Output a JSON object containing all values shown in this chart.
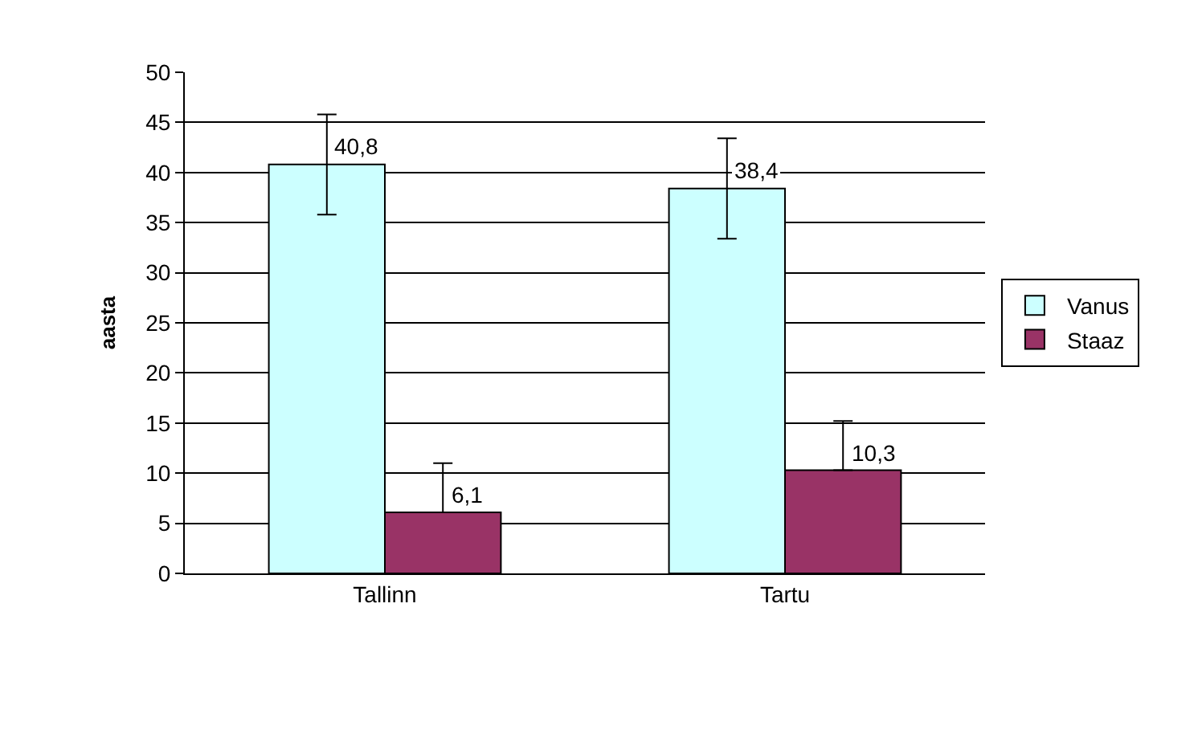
{
  "chart_data": {
    "type": "bar",
    "ylabel": "aasta",
    "categories": [
      "Tallinn",
      "Tartu"
    ],
    "series": [
      {
        "name": "Vanus",
        "color": "#ccffff",
        "values": [
          40.8,
          38.4
        ],
        "errors": [
          5,
          5
        ],
        "value_labels": [
          "40,8",
          "38,4"
        ]
      },
      {
        "name": "Staaz",
        "color": "#993366",
        "values": [
          6.1,
          10.3
        ],
        "errors": [
          [
            6.1,
            11.0
          ],
          [
            10.3,
            15.2
          ]
        ],
        "value_labels": [
          "6,1",
          "10,3"
        ]
      }
    ],
    "ylim": [
      0,
      50
    ],
    "yticks": [
      0,
      5,
      10,
      15,
      20,
      25,
      30,
      35,
      40,
      45,
      50
    ],
    "grid": "y",
    "legend": "right"
  }
}
